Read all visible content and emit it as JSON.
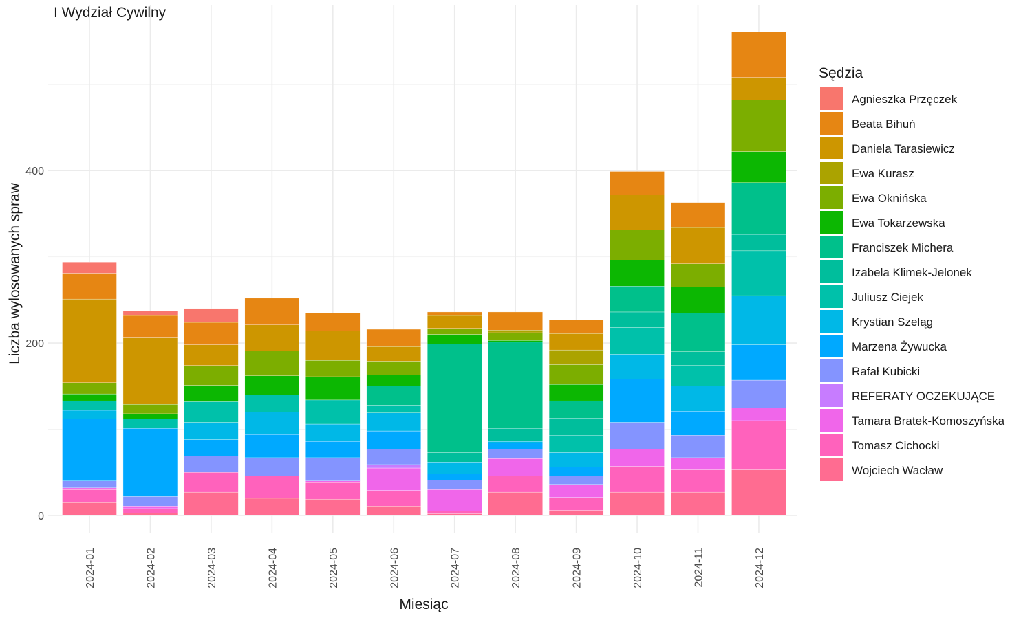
{
  "title": "I Wydział Cywilny",
  "chart_data": {
    "type": "bar",
    "stacked": true,
    "title": "I Wydział Cywilny",
    "xlabel": "Miesiąc",
    "ylabel": "Liczba wylosowanych spraw",
    "ylim": [
      -20,
      565
    ],
    "yticks": [
      0,
      200,
      400
    ],
    "grid": true,
    "legend_title": "Sędzia",
    "legend_position": "right",
    "categories": [
      "2024-01",
      "2024-02",
      "2024-03",
      "2024-04",
      "2024-05",
      "2024-06",
      "2024-07",
      "2024-08",
      "2024-09",
      "2024-10",
      "2024-11",
      "2024-12"
    ],
    "series": [
      {
        "name": "Wojciech Wacław",
        "color": "#FF6C91",
        "values": [
          15,
          3,
          27,
          20,
          19,
          11,
          2,
          27,
          6,
          27,
          27,
          53
        ]
      },
      {
        "name": "Tomasz Cichocki",
        "color": "#FF62BC",
        "values": [
          15,
          5,
          23,
          26,
          19,
          18,
          3,
          19,
          15,
          30,
          26,
          57
        ]
      },
      {
        "name": "Tamara Bratek-Komoszyńska",
        "color": "#F066EA",
        "values": [
          2,
          3,
          0,
          0,
          2,
          26,
          25,
          20,
          15,
          20,
          14,
          15
        ]
      },
      {
        "name": "REFERATY OCZEKUJĄCE",
        "color": "#C77CFF",
        "values": [
          0,
          0,
          0,
          0,
          0,
          4,
          0,
          0,
          0,
          0,
          0,
          0
        ]
      },
      {
        "name": "Rafał Kubicki",
        "color": "#8494FF",
        "values": [
          8,
          11,
          19,
          21,
          27,
          18,
          11,
          11,
          10,
          31,
          26,
          32
        ]
      },
      {
        "name": "Marzena Żywucka",
        "color": "#00A9FF",
        "values": [
          72,
          79,
          19,
          27,
          19,
          21,
          7,
          7,
          10,
          50,
          28,
          41
        ]
      },
      {
        "name": "Krystian Szeląg",
        "color": "#00B8E7",
        "values": [
          10,
          0,
          20,
          26,
          20,
          21,
          14,
          2,
          17,
          29,
          29,
          57
        ]
      },
      {
        "name": "Juliusz Ciejek",
        "color": "#00C1AA",
        "values": [
          11,
          11,
          24,
          20,
          28,
          9,
          0,
          0,
          20,
          31,
          24,
          52
        ]
      },
      {
        "name": "Izabela Klimek-Jelonek",
        "color": "#00BE9C",
        "values": [
          0,
          0,
          0,
          0,
          0,
          0,
          11,
          15,
          20,
          18,
          16,
          19
        ]
      },
      {
        "name": "Franciszek Michera",
        "color": "#00C08B",
        "values": [
          0,
          0,
          0,
          0,
          0,
          22,
          126,
          100,
          20,
          30,
          45,
          60
        ]
      },
      {
        "name": "Ewa Tokarzewska",
        "color": "#0CB702",
        "values": [
          8,
          6,
          19,
          22,
          27,
          13,
          11,
          2,
          19,
          30,
          30,
          36
        ]
      },
      {
        "name": "Ewa Oknińska",
        "color": "#7CAE00",
        "values": [
          13,
          11,
          23,
          29,
          19,
          16,
          7,
          9,
          23,
          35,
          27,
          60
        ]
      },
      {
        "name": "Ewa Kurasz",
        "color": "#ABA300",
        "values": [
          0,
          0,
          0,
          0,
          0,
          0,
          0,
          3,
          17,
          0,
          0,
          0
        ]
      },
      {
        "name": "Daniela Tarasiewicz",
        "color": "#CD9600",
        "values": [
          97,
          77,
          24,
          30,
          34,
          17,
          15,
          0,
          19,
          41,
          42,
          26
        ]
      },
      {
        "name": "Beata Bihuń",
        "color": "#E68613",
        "values": [
          30,
          26,
          26,
          31,
          21,
          20,
          4,
          21,
          16,
          27,
          29,
          53
        ]
      },
      {
        "name": "Agnieszka Przęczek",
        "color": "#F8766D",
        "values": [
          13,
          5,
          16,
          0,
          0,
          0,
          0,
          0,
          0,
          0,
          0,
          0
        ]
      }
    ]
  }
}
